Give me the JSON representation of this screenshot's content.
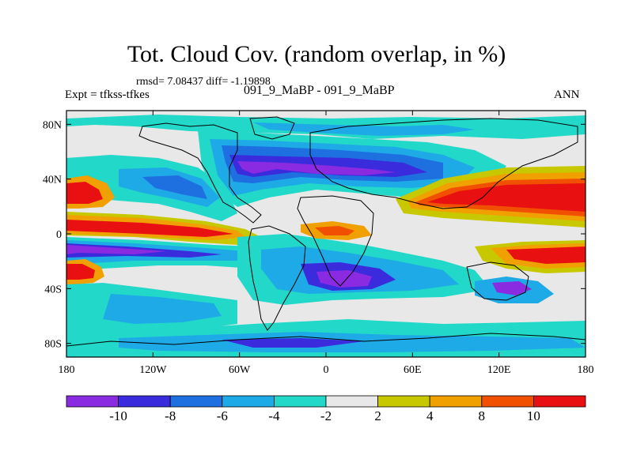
{
  "title": "Tot. Cloud Cov. (random overlap, in %)",
  "stats_line": "rmsd= 7.08437 diff= -1.19898",
  "expt_label": "Expt = tfkss-tfkes",
  "case_label": "091_9_MaBP - 091_9_MaBP",
  "season_label": "ANN",
  "axes": {
    "lat_ticks": [
      "80N",
      "40N",
      "0",
      "40S",
      "80S"
    ],
    "lat_values": [
      80,
      40,
      0,
      -40,
      -80
    ],
    "lon_ticks": [
      "180",
      "120W",
      "60W",
      "0",
      "60E",
      "120E",
      "180"
    ],
    "lon_values": [
      -180,
      -120,
      -60,
      0,
      60,
      120,
      180
    ]
  },
  "colorbar": {
    "colors": [
      "#8a2be2",
      "#3a2bdc",
      "#1e6fe0",
      "#1eaae6",
      "#22d8c8",
      "#e8e8e8",
      "#c8c800",
      "#f0a000",
      "#f05000",
      "#e81010"
    ],
    "labels": [
      "-10",
      "-8",
      "-6",
      "-4",
      "-2",
      "2",
      "4",
      "8",
      "10"
    ]
  },
  "colors": {
    "purple": "#8a2be2",
    "blue": "#3a2bdc",
    "midblue": "#1e6fe0",
    "lightblue": "#1eaae6",
    "cyan": "#22d8c8",
    "neutral": "#e8e8e8",
    "yellow": "#c8c800",
    "orange": "#f0a000",
    "redorange": "#f05000",
    "red": "#e81010"
  }
}
